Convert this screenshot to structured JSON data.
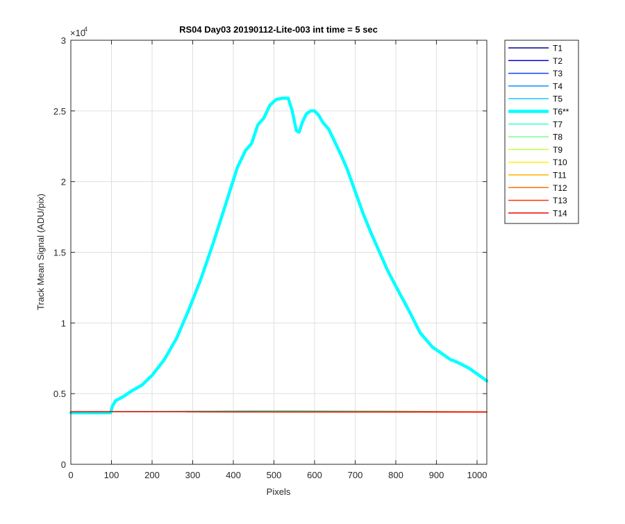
{
  "chart_data": {
    "type": "line",
    "title": "RS04 Day03 20190112-Lite-003 int time = 5 sec",
    "xlabel": "Pixels",
    "ylabel": "Track Mean Signal (ADU/pix)",
    "xlim": [
      0,
      1024
    ],
    "ylim": [
      0,
      30000
    ],
    "y_exponent_label": "×10",
    "y_exponent_power": "4",
    "xticks": [
      0,
      100,
      200,
      300,
      400,
      500,
      600,
      700,
      800,
      900,
      1000
    ],
    "xtick_labels": [
      "0",
      "100",
      "200",
      "300",
      "400",
      "500",
      "600",
      "700",
      "800",
      "900",
      "1000"
    ],
    "yticks": [
      0,
      5000,
      10000,
      15000,
      20000,
      25000,
      30000
    ],
    "ytick_labels": [
      "0",
      "0.5",
      "1",
      "1.5",
      "2",
      "2.5",
      "3"
    ],
    "grid": true,
    "legend_position": "outside-right",
    "series": [
      {
        "name": "T1",
        "color": "#00008f",
        "width": 1.5,
        "x": [
          0,
          1024
        ],
        "y": [
          3720,
          3700
        ]
      },
      {
        "name": "T2",
        "color": "#0000dc",
        "width": 1.5,
        "x": [
          0,
          1024
        ],
        "y": [
          3720,
          3700
        ]
      },
      {
        "name": "T3",
        "color": "#0f3fff",
        "width": 1.5,
        "x": [
          0,
          1024
        ],
        "y": [
          3720,
          3700
        ]
      },
      {
        "name": "T4",
        "color": "#0f8fff",
        "width": 1.5,
        "x": [
          0,
          1024
        ],
        "y": [
          3720,
          3700
        ]
      },
      {
        "name": "T5",
        "color": "#10c8ff",
        "width": 1.5,
        "x": [
          0,
          1024
        ],
        "y": [
          3720,
          3700
        ]
      },
      {
        "name": "T6**",
        "color": "#00ffff",
        "width": 4.5,
        "x": [
          0,
          50,
          98,
          102,
          110,
          130,
          150,
          175,
          200,
          230,
          260,
          290,
          320,
          350,
          380,
          410,
          430,
          445,
          460,
          475,
          490,
          505,
          520,
          535,
          545,
          555,
          562,
          570,
          580,
          590,
          600,
          610,
          620,
          635,
          650,
          665,
          680,
          700,
          720,
          740,
          760,
          780,
          800,
          830,
          860,
          890,
          920,
          935,
          945,
          960,
          980,
          1000,
          1024
        ],
        "y": [
          3650,
          3650,
          3650,
          4100,
          4500,
          4800,
          5200,
          5600,
          6300,
          7400,
          8900,
          10900,
          13100,
          15600,
          18300,
          21000,
          22200,
          22700,
          24000,
          24500,
          25400,
          25800,
          25900,
          25900,
          25000,
          23600,
          23500,
          24200,
          24800,
          25000,
          25000,
          24700,
          24200,
          23700,
          22800,
          21900,
          20900,
          19300,
          17700,
          16300,
          15000,
          13700,
          12600,
          11000,
          9300,
          8300,
          7700,
          7400,
          7300,
          7100,
          6800,
          6400,
          5900
        ]
      },
      {
        "name": "T7",
        "color": "#3fffc0",
        "width": 1.5,
        "x": [
          0,
          200,
          500,
          800,
          1024
        ],
        "y": [
          3720,
          3740,
          3800,
          3760,
          3700
        ]
      },
      {
        "name": "T8",
        "color": "#70ff8f",
        "width": 1.5,
        "x": [
          0,
          1024
        ],
        "y": [
          3720,
          3700
        ]
      },
      {
        "name": "T9",
        "color": "#bfff3f",
        "width": 1.5,
        "x": [
          0,
          1024
        ],
        "y": [
          3720,
          3700
        ]
      },
      {
        "name": "T10",
        "color": "#ffef0f",
        "width": 1.5,
        "x": [
          0,
          1024
        ],
        "y": [
          3720,
          3700
        ]
      },
      {
        "name": "T11",
        "color": "#ffb000",
        "width": 1.5,
        "x": [
          0,
          1024
        ],
        "y": [
          3720,
          3700
        ]
      },
      {
        "name": "T12",
        "color": "#ff7000",
        "width": 1.5,
        "x": [
          0,
          1024
        ],
        "y": [
          3720,
          3700
        ]
      },
      {
        "name": "T13",
        "color": "#ff3000",
        "width": 1.5,
        "x": [
          0,
          1024
        ],
        "y": [
          3720,
          3700
        ]
      },
      {
        "name": "T14",
        "color": "#ef0000",
        "width": 1.5,
        "x": [
          0,
          1024
        ],
        "y": [
          3720,
          3700
        ]
      }
    ]
  }
}
